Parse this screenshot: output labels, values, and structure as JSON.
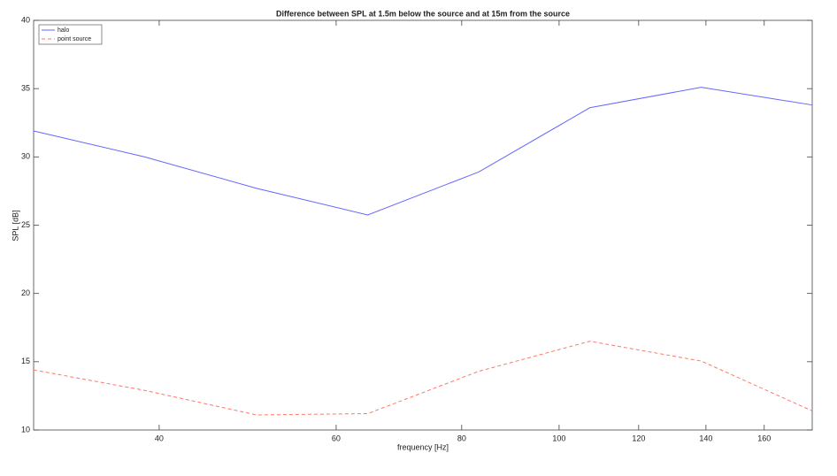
{
  "chart_data": {
    "type": "line",
    "title": "Difference between SPL at 1.5m below the source and at 15m from the source",
    "x_label": "frequency [Hz]",
    "y_label": "SPL [dB]",
    "x": [
      30,
      38.7,
      50,
      64.5,
      83.2,
      107.3,
      138.5,
      178.6
    ],
    "series": [
      {
        "name": "halo",
        "color": "#6666ff",
        "linestyle": "solid",
        "values": [
          31.9,
          30.0,
          27.7,
          25.75,
          28.9,
          33.6,
          35.1,
          33.8
        ]
      },
      {
        "name": "point source",
        "color": "#ff7766",
        "linestyle": "dashed",
        "values": [
          14.4,
          12.9,
          11.1,
          11.2,
          14.3,
          16.5,
          15.05,
          11.4
        ]
      }
    ],
    "xscale": "log",
    "xlim": [
      30,
      178.6
    ],
    "xticks": [
      40,
      60,
      80,
      100,
      120,
      140,
      160
    ],
    "ylim": [
      10,
      40
    ],
    "yticks": [
      10,
      15,
      20,
      25,
      30,
      35,
      40
    ],
    "grid": false,
    "legend": "upper left"
  }
}
